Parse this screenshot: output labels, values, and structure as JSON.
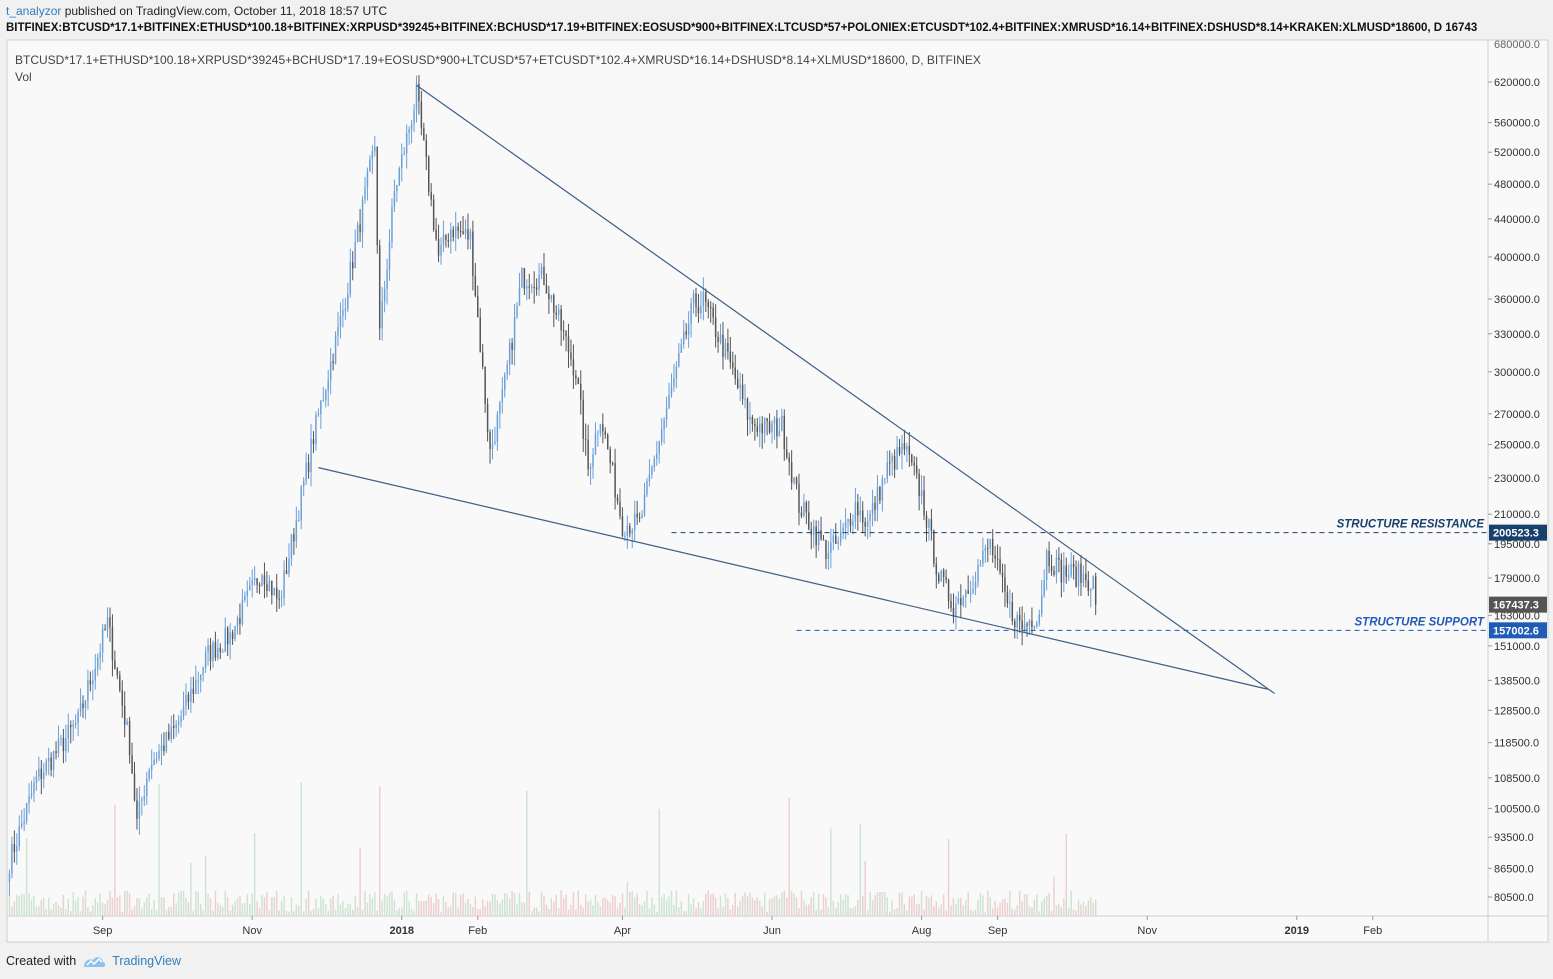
{
  "header": {
    "author": "t_analyzor",
    "published": " published on TradingView.com, October 11, 2018 18:57 UTC",
    "symbol_full": "BITFINEX:BTCUSD*17.1+BITFINEX:ETHUSD*100.18+BITFINEX:XRPUSD*39245+BITFINEX:BCHUSD*17.19+BITFINEX:EOSUSD*900+BITFINEX:LTCUSD*57+POLONIEX:ETCUSDT*102.4+BITFINEX:XMRUSD*16.14+BITFINEX:DSHUSD*8.14+KRAKEN:XLMUSD*18600, D  16743"
  },
  "footer": {
    "created_with": "Created with",
    "brand": "TradingView"
  },
  "colors": {
    "up": "#6a9fd8",
    "down": "#555555",
    "trendline": "#3f5d85",
    "resistance_tag": "#17406d",
    "support_tag": "#1f5bb7",
    "price_tag": "#555555",
    "vol_up": "#cfe3d2",
    "vol_down": "#edcfcf"
  },
  "chart_data": {
    "type": "candlestick",
    "legend_title": "BTCUSD*17.1+ETHUSD*100.18+XRPUSD*39245+BCHUSD*17.19+EOSUSD*900+LTCUSD*57+ETCUSDT*102.4+XMRUSD*16.14+DSHUSD*8.14+XLMUSD*18600, D, BITFINEX",
    "volume_label": "Vol",
    "y_axis": {
      "scale": "log",
      "ticks": [
        "620000.0",
        "560000.0",
        "520000.0",
        "480000.0",
        "440000.0",
        "400000.0",
        "360000.0",
        "330000.0",
        "300000.0",
        "270000.0",
        "250000.0",
        "230000.0",
        "210000.0",
        "195000.0",
        "179000.0",
        "163000.0",
        "151000.0",
        "138500.0",
        "128500.0",
        "118500.0",
        "108500.0",
        "100500.0",
        "93500.0",
        "86500.0",
        "80500.0"
      ],
      "tick_values": [
        620000,
        560000,
        520000,
        480000,
        440000,
        400000,
        360000,
        330000,
        300000,
        270000,
        250000,
        230000,
        210000,
        195000,
        179000,
        163000,
        151000,
        138500,
        128500,
        118500,
        108500,
        100500,
        93500,
        86500,
        80500
      ]
    },
    "x_axis": {
      "labels": [
        "Sep",
        "Nov",
        "2018",
        "Feb",
        "Apr",
        "Jun",
        "Aug",
        "Sep",
        "Nov",
        "2019",
        "Feb"
      ],
      "label_dates": [
        "2017-09-01",
        "2017-11-01",
        "2018-01-01",
        "2018-02-01",
        "2018-04-01",
        "2018-06-01",
        "2018-08-01",
        "2018-09-01",
        "2018-11-01",
        "2019-01-01",
        "2019-02-01"
      ],
      "bold": [
        "2018",
        "2019"
      ],
      "range": [
        "2017-07-24",
        "2019-03-20"
      ]
    },
    "anchors": [
      [
        "2017-07-25",
        88000
      ],
      [
        "2017-08-05",
        108000
      ],
      [
        "2017-08-22",
        125000
      ],
      [
        "2017-09-03",
        160000
      ],
      [
        "2017-09-12",
        118000
      ],
      [
        "2017-09-15",
        97000
      ],
      [
        "2017-09-20",
        112000
      ],
      [
        "2017-10-01",
        123000
      ],
      [
        "2017-10-14",
        148000
      ],
      [
        "2017-10-23",
        155000
      ],
      [
        "2017-11-05",
        183000
      ],
      [
        "2017-11-12",
        168000
      ],
      [
        "2017-11-26",
        255000
      ],
      [
        "2017-12-08",
        350000
      ],
      [
        "2017-12-21",
        530000
      ],
      [
        "2017-12-23",
        330000
      ],
      [
        "2017-12-29",
        470000
      ],
      [
        "2018-01-07",
        600000
      ],
      [
        "2018-01-16",
        400000
      ],
      [
        "2018-01-21",
        430000
      ],
      [
        "2018-01-29",
        420000
      ],
      [
        "2018-02-06",
        245000
      ],
      [
        "2018-02-11",
        280000
      ],
      [
        "2018-02-19",
        380000
      ],
      [
        "2018-02-28",
        380000
      ],
      [
        "2018-03-13",
        300000
      ],
      [
        "2018-03-18",
        235000
      ],
      [
        "2018-03-23",
        270000
      ],
      [
        "2018-04-01",
        205000
      ],
      [
        "2018-04-08",
        205000
      ],
      [
        "2018-04-17",
        260000
      ],
      [
        "2018-04-30",
        355000
      ],
      [
        "2018-05-04",
        358000
      ],
      [
        "2018-05-14",
        310000
      ],
      [
        "2018-05-23",
        265000
      ],
      [
        "2018-05-30",
        260000
      ],
      [
        "2018-06-05",
        262000
      ],
      [
        "2018-06-12",
        215000
      ],
      [
        "2018-06-23",
        192000
      ],
      [
        "2018-06-28",
        195000
      ],
      [
        "2018-07-05",
        215000
      ],
      [
        "2018-07-10",
        205000
      ],
      [
        "2018-07-18",
        235000
      ],
      [
        "2018-07-25",
        248000
      ],
      [
        "2018-08-01",
        220000
      ],
      [
        "2018-08-08",
        180000
      ],
      [
        "2018-08-14",
        167000
      ],
      [
        "2018-08-20",
        175000
      ],
      [
        "2018-08-29",
        195000
      ],
      [
        "2018-09-05",
        167000
      ],
      [
        "2018-09-11",
        158000
      ],
      [
        "2018-09-18",
        165000
      ],
      [
        "2018-09-21",
        190000
      ],
      [
        "2018-09-27",
        182000
      ],
      [
        "2018-10-05",
        180000
      ],
      [
        "2018-10-10",
        177000
      ],
      [
        "2018-10-11",
        167437.3
      ]
    ],
    "trendlines": [
      {
        "name": "descending-resistance",
        "from": [
          "2018-01-07",
          615000
        ],
        "to": [
          "2018-12-23",
          134000
        ]
      },
      {
        "name": "descending-support",
        "from": [
          "2017-11-28",
          236000
        ],
        "to": [
          "2018-12-20",
          135500
        ]
      }
    ],
    "levels": [
      {
        "name": "structure-resistance",
        "label": "STRUCTURE RESISTANCE",
        "value": 200523.3,
        "tag": "200523.3",
        "from": "2018-04-21"
      },
      {
        "name": "structure-support",
        "label": "STRUCTURE SUPPORT",
        "value": 157002.6,
        "tag": "157002.6",
        "from": "2018-06-11"
      }
    ],
    "last_price": {
      "value": 167437.3,
      "tag": "167437.3"
    },
    "top_cut_tick": "680000.0"
  }
}
